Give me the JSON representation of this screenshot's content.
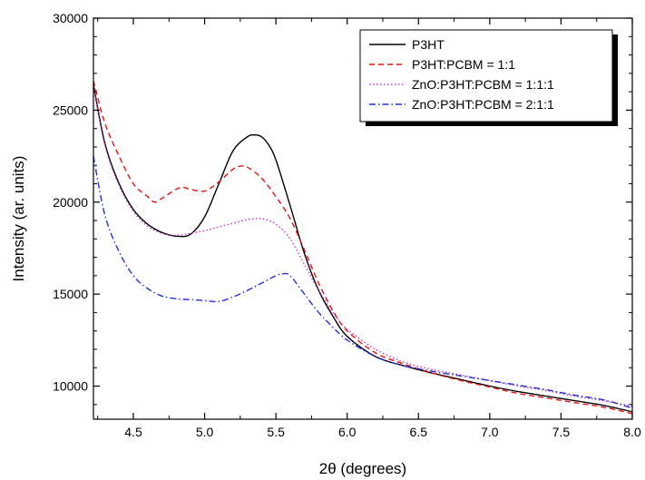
{
  "chart_data": {
    "type": "line",
    "xlabel": "2θ (degrees)",
    "ylabel": "Intensity (ar. units)",
    "xlim": [
      4.22,
      8.0
    ],
    "ylim": [
      8200,
      30000
    ],
    "x_ticks": [
      4.5,
      5.0,
      5.5,
      6.0,
      6.5,
      7.0,
      7.5,
      8.0
    ],
    "x_tick_labels": [
      "4.5",
      "5.0",
      "5.5",
      "6.0",
      "6.5",
      "7.0",
      "7.5",
      "8.0"
    ],
    "y_ticks": [
      10000,
      15000,
      20000,
      25000,
      30000
    ],
    "y_tick_labels": [
      "10000",
      "15000",
      "20000",
      "25000",
      "30000"
    ],
    "grid": false,
    "legend_position": "top-right",
    "series": [
      {
        "name": "P3HT",
        "color": "#000000",
        "dash": "solid",
        "x": [
          4.22,
          4.3,
          4.4,
          4.5,
          4.6,
          4.7,
          4.8,
          4.9,
          5.0,
          5.1,
          5.2,
          5.3,
          5.35,
          5.4,
          5.45,
          5.5,
          5.6,
          5.7,
          5.8,
          5.9,
          6.0,
          6.2,
          6.4,
          6.6,
          6.8,
          7.0,
          7.2,
          7.4,
          7.6,
          7.8,
          8.0
        ],
        "y": [
          26400,
          23200,
          21000,
          19600,
          18800,
          18350,
          18150,
          18250,
          19200,
          21000,
          22800,
          23550,
          23650,
          23550,
          23100,
          22300,
          19800,
          17200,
          15200,
          13800,
          12700,
          11600,
          11100,
          10700,
          10350,
          10000,
          9700,
          9450,
          9200,
          8950,
          8600
        ]
      },
      {
        "name": "P3HT:PCBM = 1:1",
        "color": "#e8100f",
        "dash": "dashed",
        "x": [
          4.22,
          4.3,
          4.4,
          4.5,
          4.6,
          4.65,
          4.7,
          4.8,
          4.85,
          4.9,
          5.0,
          5.1,
          5.2,
          5.25,
          5.3,
          5.4,
          5.5,
          5.6,
          5.7,
          5.8,
          5.9,
          6.0,
          6.2,
          6.4,
          6.6,
          6.8,
          7.0,
          7.2,
          7.4,
          7.6,
          7.8,
          8.0
        ],
        "y": [
          26600,
          24300,
          22500,
          21000,
          20300,
          20000,
          20200,
          20700,
          20800,
          20700,
          20600,
          21100,
          21800,
          21950,
          21900,
          21300,
          20300,
          19100,
          17400,
          15600,
          14100,
          13000,
          11800,
          11200,
          10700,
          10300,
          9950,
          9600,
          9350,
          9100,
          8850,
          8500
        ]
      },
      {
        "name": "ZnO:P3HT:PCBM = 1:1:1",
        "color": "#c038c0",
        "dash": "dotted",
        "x": [
          4.22,
          4.3,
          4.4,
          4.5,
          4.6,
          4.7,
          4.8,
          4.9,
          5.0,
          5.1,
          5.2,
          5.3,
          5.4,
          5.5,
          5.6,
          5.7,
          5.8,
          5.9,
          6.0,
          6.2,
          6.4,
          6.6,
          6.8,
          7.0,
          7.2,
          7.4,
          7.6,
          7.8,
          8.0
        ],
        "y": [
          26300,
          23100,
          20900,
          19500,
          18700,
          18300,
          18200,
          18300,
          18450,
          18650,
          18850,
          19050,
          19100,
          18800,
          18000,
          16600,
          15200,
          14000,
          13100,
          12000,
          11300,
          10900,
          10600,
          10300,
          10000,
          9750,
          9450,
          9200,
          8900
        ]
      },
      {
        "name": "ZnO:P3HT:PCBM = 2:1:1",
        "color": "#2230d8",
        "dash": "dashdot",
        "x": [
          4.22,
          4.3,
          4.4,
          4.5,
          4.6,
          4.7,
          4.8,
          4.9,
          5.0,
          5.1,
          5.2,
          5.3,
          5.4,
          5.5,
          5.55,
          5.6,
          5.7,
          5.8,
          5.9,
          6.0,
          6.2,
          6.4,
          6.6,
          6.8,
          7.0,
          7.2,
          7.4,
          7.6,
          7.8,
          8.0
        ],
        "y": [
          22500,
          19300,
          17300,
          16000,
          15300,
          14900,
          14750,
          14700,
          14650,
          14600,
          14850,
          15200,
          15600,
          16000,
          16100,
          16000,
          15000,
          14000,
          13200,
          12500,
          11600,
          11100,
          10800,
          10550,
          10300,
          10050,
          9800,
          9500,
          9250,
          8800
        ]
      }
    ]
  }
}
